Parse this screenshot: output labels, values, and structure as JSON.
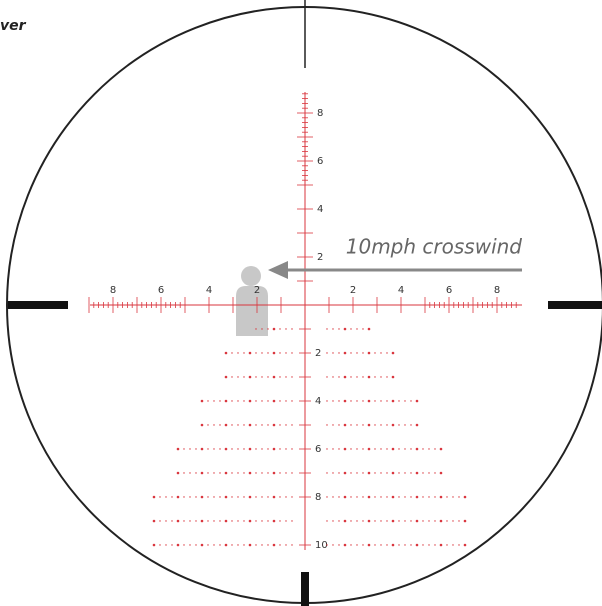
{
  "header": {
    "title": "ver"
  },
  "annotation": {
    "label": "10mph crosswind"
  },
  "horizontal_scale": {
    "labels": [
      "8",
      "6",
      "4",
      "2",
      "2",
      "4",
      "6",
      "8"
    ]
  },
  "vertical_scale": {
    "upper_labels": [
      "8",
      "6",
      "4",
      "2"
    ],
    "lower_labels": [
      "2",
      "4",
      "6",
      "8",
      "10"
    ]
  }
}
